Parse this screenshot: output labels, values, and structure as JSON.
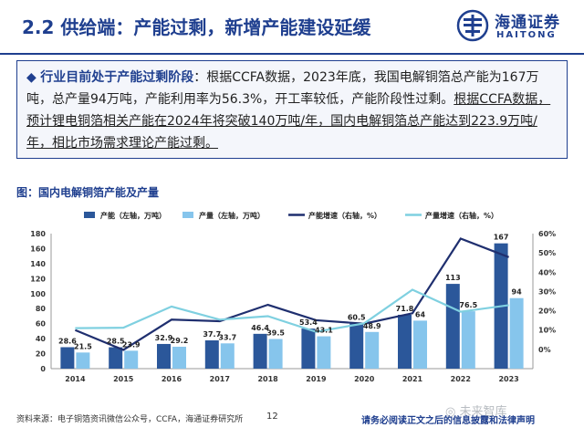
{
  "header": {
    "title": "2.2 供给端：产能过剩，新增产能建设延缓",
    "logo_cn": "海通证券",
    "logo_en": "HAITONG"
  },
  "summary": {
    "bullet": "◆",
    "lead": "行业目前处于产能过剩阶段",
    "text1": "：根据CCFA数据，2023年底，我国电解铜箔总产能为167万吨，总产量94万吨，产能利用率为56.3%，开工率较低，产能阶段性过剩。",
    "text2": "根据CCFA数据，预计锂电铜箔相关产能在2024年将突破140万吨/年，国内电解铜箔总产能达到223.9万吨/年，相比市场需求理论产能过剩。"
  },
  "figure_label": "图：国内电解铜箔产能及产量",
  "footer": {
    "source": "资料来源：电子铜箔资讯微信公众号，CCFA，海通证券研究所",
    "page": "12",
    "note": "请务必阅读正文之后的信息披露和法律声明",
    "watermark": "◎ 未来智库"
  },
  "chart_data": {
    "type": "bar",
    "categories": [
      "2014",
      "2015",
      "2016",
      "2017",
      "2018",
      "2019",
      "2020",
      "2021",
      "2022",
      "2023"
    ],
    "series": [
      {
        "name": "产能（左轴，万吨）",
        "kind": "bar",
        "axis": "left",
        "color": "#2b579a",
        "values": [
          28.6,
          28.5,
          32.9,
          37.7,
          46.4,
          53.4,
          60.5,
          71.8,
          113,
          167
        ]
      },
      {
        "name": "产量（左轴，万吨）",
        "kind": "bar",
        "axis": "left",
        "color": "#86c5ec",
        "values": [
          21.5,
          23.9,
          29.2,
          33.7,
          39.5,
          43.1,
          48.9,
          64,
          76.5,
          94
        ]
      },
      {
        "name": "产能增速（右轴，%）",
        "kind": "line",
        "axis": "right",
        "color": "#1f2f6f",
        "values": [
          10,
          -0.3,
          15.4,
          14.6,
          23.1,
          15.1,
          13.3,
          18.7,
          57.4,
          47.8
        ]
      },
      {
        "name": "产量增速（右轴，%）",
        "kind": "line",
        "axis": "right",
        "color": "#7fd0e0",
        "values": [
          11,
          11.2,
          22.2,
          15.4,
          17.2,
          9.1,
          13.5,
          30.9,
          19.5,
          22.9
        ]
      }
    ],
    "bar_labels": {
      "capacity": [
        "28.6",
        "28.5",
        "32.9",
        "37.7",
        "46.4",
        "53.4",
        "60.5",
        "71.8",
        "113",
        "167"
      ],
      "output": [
        "21.5",
        "23.9",
        "29.2",
        "33.7",
        "39.5",
        "43.1",
        "48.9",
        "64",
        "76.5",
        "94"
      ]
    },
    "left_ticks": [
      "0",
      "20",
      "40",
      "60",
      "80",
      "100",
      "120",
      "140",
      "160",
      "180"
    ],
    "right_ticks": [
      "0%",
      "10%",
      "20%",
      "30%",
      "40%",
      "50%",
      "60%"
    ],
    "ylim_left": [
      0,
      180
    ],
    "ylim_right": [
      -10,
      60
    ],
    "legend_position": "top",
    "grid": false
  }
}
